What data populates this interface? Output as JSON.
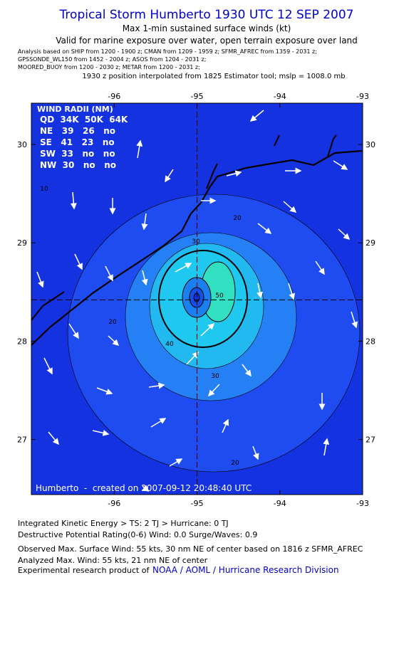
{
  "header": {
    "title": "Tropical Storm Humberto 1930 UTC 12 SEP 2007",
    "subtitle": "Max 1-min sustained surface winds (kt)",
    "validity": "Valid for marine exposure over water, open terrain exposure over land",
    "analysis_lines": [
      "Analysis based on   SHIP from 1200 - 1900 z;  CMAN from 1209 - 1959 z;  SFMR_AFREC from 1359 - 2031 z;",
      "GPSSONDE_WL150 from 1452 - 2004 z;  ASOS from 1204 - 2031 z;",
      "MOORED_BUOY from 1200 - 2030 z;  METAR from 1200 - 2031 z;"
    ],
    "position_note": "1930 z position interpolated from 1825 Estimator tool; mslp = 1008.0 mb"
  },
  "map": {
    "xlim": [
      -97,
      -93
    ],
    "ylim": [
      26.44,
      30.42
    ],
    "xticks": [
      -96,
      -95,
      -94,
      -93
    ],
    "yticks": [
      27,
      28,
      29,
      30
    ],
    "center": {
      "x": -95,
      "y": 28.42
    },
    "contour_labels": [
      "10",
      "20",
      "20",
      "20",
      "30",
      "30",
      "40",
      "50"
    ],
    "wind_radii": {
      "title": "WIND RADII (NM)",
      "rows": [
        "QD  34K  50K  64K",
        "NE   39   26   no",
        "SE   41   23   no",
        "SW  33   no   no",
        "NW  30   no   no"
      ]
    },
    "credit": "Humberto  -  created on 2007-09-12 20:48:40 UTC"
  },
  "footer": {
    "lines": [
      "Integrated Kinetic Energy > TS: 2 TJ   > Hurricane: 0 TJ",
      "Destructive Potential Rating(0-6)   Wind: 0.0 Surge/Waves: 0.9",
      "Observed Max. Surface Wind: 55 kts, 30 nm NE of center based on 1816 z SFMR_AFREC",
      "Analyzed Max. Wind: 55 kts, 21 nm NE of center"
    ],
    "product_prefix": "Experimental research product of",
    "product_org": "NOAA / AOML / Hurricane Research Division"
  }
}
